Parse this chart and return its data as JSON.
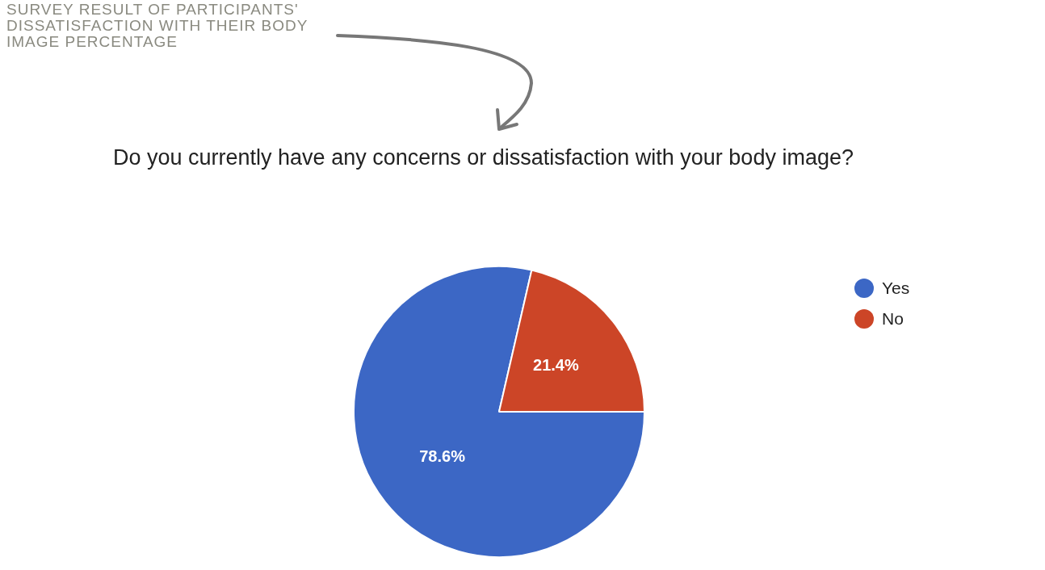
{
  "chart_data": {
    "type": "pie",
    "title": "SURVEY RESULT OF PARTICIPANTS' DISSATISFACTION WITH THEIR BODY IMAGE PERCENTAGE",
    "subtitle": "Do you currently have any concerns or dissatisfaction with your body image?",
    "categories": [
      "Yes",
      "No"
    ],
    "values": [
      78.6,
      21.4
    ],
    "colors": [
      "#3c67c5",
      "#cc4527"
    ],
    "value_labels": [
      "78.6%",
      "21.4%"
    ],
    "legend": "top right"
  }
}
